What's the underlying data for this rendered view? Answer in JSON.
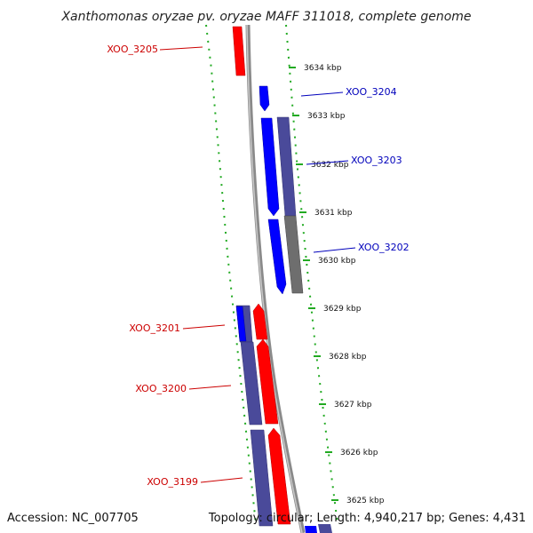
{
  "title": "Xanthomonas oryzae pv. oryzae MAFF 311018, complete genome",
  "accession": "Accession: NC_007705",
  "summary": "Topology: circular; Length: 4,940,217 bp; Genes: 4,431",
  "colors": {
    "forward_cds": "#ff0000",
    "reverse_cds": "#0000ff",
    "forward_label": "#cc0000",
    "reverse_label": "#0000bb",
    "tick": "#22aa22",
    "backbone": "#888888"
  },
  "kbp_ticks": [
    {
      "label": "3634 kbp"
    },
    {
      "label": "3633 kbp"
    },
    {
      "label": "3632 kbp"
    },
    {
      "label": "3631 kbp"
    },
    {
      "label": "3630 kbp"
    },
    {
      "label": "3629 kbp"
    },
    {
      "label": "3628 kbp"
    },
    {
      "label": "3627 kbp"
    },
    {
      "label": "3626 kbp"
    },
    {
      "label": "3625 kbp"
    }
  ],
  "genes": [
    {
      "id": "XOO_3205",
      "strand": "forward"
    },
    {
      "id": "XOO_3204",
      "strand": "reverse"
    },
    {
      "id": "XOO_3203",
      "strand": "reverse"
    },
    {
      "id": "XOO_3202",
      "strand": "reverse"
    },
    {
      "id": "XOO_3201",
      "strand": "forward"
    },
    {
      "id": "XOO_3200",
      "strand": "forward"
    },
    {
      "id": "XOO_3199",
      "strand": "forward"
    }
  ]
}
